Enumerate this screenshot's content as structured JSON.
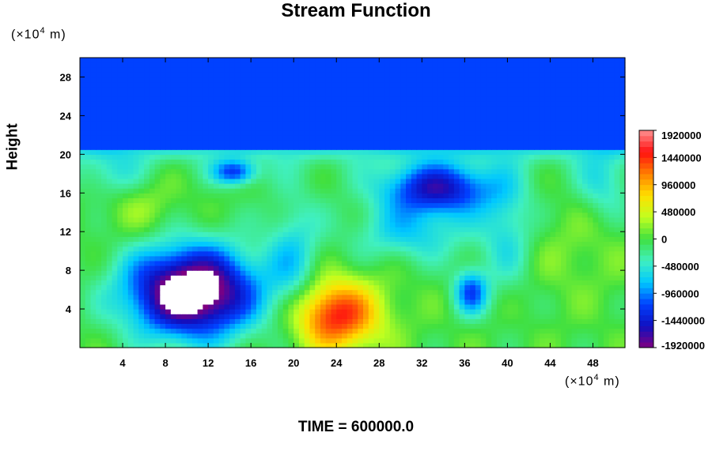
{
  "chart_data": {
    "type": "heatmap",
    "title": "Stream Function",
    "ylabel": "Height",
    "x_unit": {
      "prefix": "(×10",
      "exp": "4",
      "suffix": " m)"
    },
    "y_unit": {
      "prefix": "(×10",
      "exp": "4",
      "suffix": " m)"
    },
    "xlim": [
      0,
      51
    ],
    "ylim": [
      0,
      30
    ],
    "x_ticks": [
      "4",
      "8",
      "12",
      "16",
      "20",
      "24",
      "28",
      "32",
      "36",
      "40",
      "44",
      "48"
    ],
    "y_ticks": [
      "4",
      "8",
      "12",
      "16",
      "20",
      "24",
      "28"
    ],
    "colorbar_labels": [
      "1920000",
      "1440000",
      "960000",
      "480000",
      "0",
      "-480000",
      "-960000",
      "-1440000",
      "-1920000"
    ],
    "colorbar_range": [
      -1920000,
      1920000
    ],
    "colormap": [
      "#800080",
      "#1010c0",
      "#0040ff",
      "#00c8ff",
      "#40f0c0",
      "#40e040",
      "#c0ff20",
      "#ffe000",
      "#ff8000",
      "#ff1010",
      "#ff9090"
    ],
    "background_value_upper": -1150000,
    "boundary_height": 20.3,
    "features": [
      {
        "x": 10.5,
        "y": 5.8,
        "value": -2100000,
        "note": "masked below range"
      },
      {
        "x": 23.8,
        "y": 3.2,
        "value": 1350000
      },
      {
        "x": 33.5,
        "y": 17,
        "value": -1450000
      },
      {
        "x": 36.6,
        "y": 5.8,
        "value": -1450000
      },
      {
        "x": 14.5,
        "y": 18,
        "value": -1250000
      },
      {
        "x": 6,
        "y": 14.5,
        "value": 100000
      },
      {
        "x": 46,
        "y": 11,
        "value": 50000
      }
    ],
    "footer": "TIME = 600000.0"
  }
}
